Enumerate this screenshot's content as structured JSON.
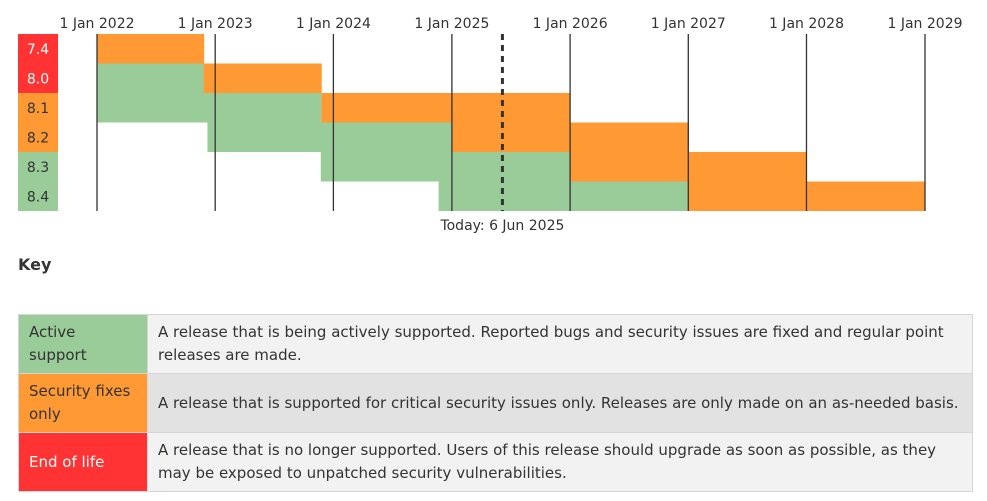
{
  "chart_data": {
    "type": "gantt",
    "x_axis": {
      "ticks": [
        "2022-01-01",
        "2023-01-01",
        "2024-01-01",
        "2025-01-01",
        "2026-01-01",
        "2027-01-01",
        "2028-01-01",
        "2029-01-01"
      ],
      "tick_labels": [
        "1 Jan 2022",
        "1 Jan 2023",
        "1 Jan 2024",
        "1 Jan 2025",
        "1 Jan 2026",
        "1 Jan 2027",
        "1 Jan 2028",
        "1 Jan 2029"
      ],
      "range": [
        "2022-01-01",
        "2029-01-01"
      ]
    },
    "today": {
      "date": "2025-06-06",
      "label": "Today: 6 Jun 2025"
    },
    "colors": {
      "active": "#9c9",
      "security": "#f93",
      "eol": "#f33",
      "branch_text_light": "#ffffff",
      "branch_text_dark": "#333333"
    },
    "branches": [
      {
        "name": "7.4",
        "status": "eol",
        "segments": [
          {
            "type": "security",
            "start": "2022-01-01",
            "end": "2022-11-28"
          }
        ]
      },
      {
        "name": "8.0",
        "status": "eol",
        "segments": [
          {
            "type": "active",
            "start": "2022-01-01",
            "end": "2022-11-26"
          },
          {
            "type": "security",
            "start": "2022-11-26",
            "end": "2023-11-26"
          }
        ]
      },
      {
        "name": "8.1",
        "status": "security",
        "segments": [
          {
            "type": "active",
            "start": "2022-01-01",
            "end": "2023-11-25"
          },
          {
            "type": "security",
            "start": "2023-11-25",
            "end": "2025-12-31"
          }
        ]
      },
      {
        "name": "8.2",
        "status": "security",
        "segments": [
          {
            "type": "active",
            "start": "2022-12-08",
            "end": "2024-12-31"
          },
          {
            "type": "security",
            "start": "2024-12-31",
            "end": "2026-12-31"
          }
        ]
      },
      {
        "name": "8.3",
        "status": "active",
        "segments": [
          {
            "type": "active",
            "start": "2023-11-23",
            "end": "2025-12-31"
          },
          {
            "type": "security",
            "start": "2025-12-31",
            "end": "2027-12-31"
          }
        ]
      },
      {
        "name": "8.4",
        "status": "active",
        "segments": [
          {
            "type": "active",
            "start": "2024-11-21",
            "end": "2026-12-31"
          },
          {
            "type": "security",
            "start": "2026-12-31",
            "end": "2028-12-31"
          }
        ]
      }
    ]
  },
  "key": {
    "heading": "Key",
    "rows": [
      {
        "label": "Active support",
        "description": "A release that is being actively supported. Reported bugs and security issues are fixed and regular point releases are made."
      },
      {
        "label": "Security fixes only",
        "description": "A release that is supported for critical security issues only. Releases are only made on an as-needed basis."
      },
      {
        "label": "End of life",
        "description": "A release that is no longer supported. Users of this release should upgrade as soon as possible, as they may be exposed to unpatched security vulnerabilities."
      }
    ]
  }
}
